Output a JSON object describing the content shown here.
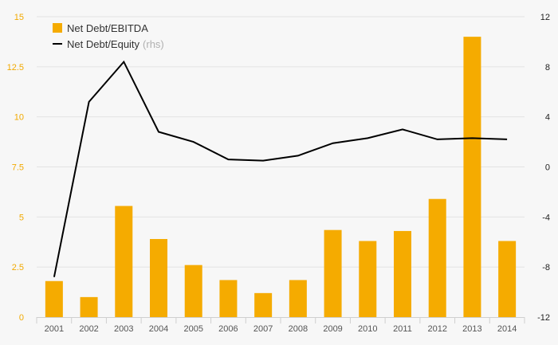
{
  "chart_data": {
    "type": "bar",
    "categories": [
      "2001",
      "2002",
      "2003",
      "2004",
      "2005",
      "2006",
      "2007",
      "2008",
      "2009",
      "2010",
      "2011",
      "2012",
      "2013",
      "2014"
    ],
    "series": [
      {
        "name": "Net Debt/EBITDA",
        "type": "bar",
        "axis": "left",
        "color": "#f5ab00",
        "values": [
          1.8,
          1.0,
          5.55,
          3.9,
          2.6,
          1.85,
          1.2,
          1.85,
          4.35,
          3.8,
          4.3,
          5.9,
          14.0,
          3.8
        ]
      },
      {
        "name": "Net Debt/Equity",
        "note": "(rhs)",
        "type": "line",
        "axis": "right",
        "color": "#000000",
        "values": [
          -8.8,
          5.2,
          8.4,
          2.8,
          2.0,
          0.6,
          0.5,
          0.9,
          1.9,
          2.3,
          3.0,
          2.2,
          2.3,
          2.2
        ]
      }
    ],
    "y_left": {
      "min": 0,
      "max": 15,
      "ticks": [
        0,
        2.5,
        5,
        7.5,
        10,
        12.5,
        15
      ],
      "tick_labels": [
        "0",
        "2.5",
        "5",
        "7.5",
        "10",
        "12.5",
        "15"
      ],
      "tick_color": "#f2a900"
    },
    "y_right": {
      "min": -12,
      "max": 12,
      "ticks": [
        -12,
        -8,
        -4,
        0,
        4,
        8,
        12
      ],
      "tick_labels": [
        "-12",
        "-8",
        "-4",
        "0",
        "4",
        "8",
        "12"
      ],
      "tick_color": "#222222"
    },
    "grid": true,
    "legend_position": "top-left"
  }
}
